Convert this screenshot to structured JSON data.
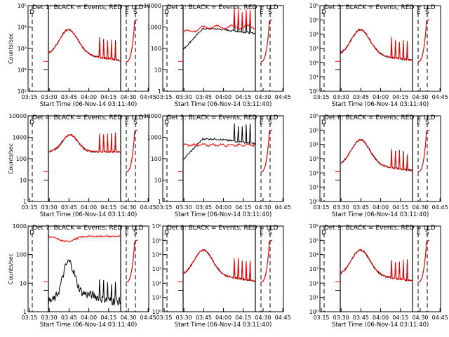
{
  "chart_data": [
    {
      "type": "line",
      "title": "Det 1: BLACK = Events, RED = LLD",
      "ylabel": "Counts/sec",
      "xlabel": "Start Time (06-Nov-14 03:11:40)",
      "y_tick_labels": [
        "10¹",
        "10²",
        "10³",
        "10⁴",
        "10⁵"
      ],
      "ylim": [
        1,
        100000
      ],
      "log_y": true,
      "x_tick_labels": [
        "03:15",
        "03:30",
        "03:45",
        "04:00",
        "04:15",
        "04:30",
        "04:45"
      ],
      "markers": [
        "D",
        "E",
        "S"
      ],
      "series": [
        {
          "name": "Events",
          "color": "#000000",
          "shape": "rise"
        },
        {
          "name": "LLD",
          "color": "#ff0000",
          "shape": "rise"
        }
      ]
    },
    {
      "type": "line",
      "title": "Det 2: BLACK = Events, RED = LLD",
      "ylabel": "",
      "xlabel": "Start Time (06-Nov-14 03:11:40)",
      "y_tick_labels": [
        "1",
        "10",
        "100",
        "1000",
        "10000"
      ],
      "ylim": [
        1,
        10000
      ],
      "log_y": true,
      "x_tick_labels": [
        "03:15",
        "03:30",
        "03:45",
        "04:00",
        "04:15",
        "04:30",
        "04:45"
      ],
      "markers": [
        "D",
        "E",
        "S"
      ],
      "series": [
        {
          "name": "Events",
          "color": "#000000",
          "shape": "plateau"
        },
        {
          "name": "LLD",
          "color": "#ff0000",
          "shape": "high"
        }
      ]
    },
    {
      "type": "line",
      "title": "Det 3: BLACK = Events, RED = LLD",
      "ylabel": "",
      "xlabel": "Start Time (06-Nov-14 03:11:40)",
      "y_tick_labels": [
        "10⁰",
        "10¹",
        "10²",
        "10³",
        "10⁴",
        "10⁵",
        "10⁶"
      ],
      "ylim": [
        1,
        1000000
      ],
      "log_y": true,
      "x_tick_labels": [
        "03:15",
        "03:30",
        "03:45",
        "04:00",
        "04:15",
        "04:30",
        "04:45"
      ],
      "markers": [
        "D",
        "E",
        "S"
      ],
      "series": [
        {
          "name": "Events",
          "color": "#000000",
          "shape": "rise"
        },
        {
          "name": "LLD",
          "color": "#ff0000",
          "shape": "rise"
        }
      ]
    },
    {
      "type": "line",
      "title": "Det 4: BLACK = Events, RED = LLD",
      "ylabel": "Counts/sec",
      "xlabel": "Start Time (06-Nov-14 03:11:40)",
      "y_tick_labels": [
        "1",
        "10",
        "100",
        "1000",
        "10000"
      ],
      "ylim": [
        1,
        10000
      ],
      "log_y": true,
      "x_tick_labels": [
        "03:15",
        "03:30",
        "03:45",
        "04:00",
        "04:15",
        "04:30",
        "04:45"
      ],
      "markers": [
        "D",
        "E",
        "S"
      ],
      "series": [
        {
          "name": "Events",
          "color": "#000000",
          "shape": "bump"
        },
        {
          "name": "LLD",
          "color": "#ff0000",
          "shape": "bump"
        }
      ]
    },
    {
      "type": "line",
      "title": "Det 5: BLACK = Events, RED = LLD",
      "ylabel": "",
      "xlabel": "Start Time (06-Nov-14 03:11:40)",
      "y_tick_labels": [
        "1",
        "10",
        "100",
        "1000",
        "10000"
      ],
      "ylim": [
        1,
        10000
      ],
      "log_y": true,
      "x_tick_labels": [
        "03:15",
        "03:30",
        "03:45",
        "04:00",
        "04:15",
        "04:30",
        "04:45"
      ],
      "markers": [
        "D",
        "E",
        "S"
      ],
      "series": [
        {
          "name": "Events",
          "color": "#000000",
          "shape": "plateau"
        },
        {
          "name": "LLD",
          "color": "#ff0000",
          "shape": "flat"
        }
      ]
    },
    {
      "type": "line",
      "title": "Det 6: BLACK = Events, RED = LLD",
      "ylabel": "",
      "xlabel": "Start Time (06-Nov-14 03:11:40)",
      "y_tick_labels": [
        "10⁰",
        "10¹",
        "10²",
        "10³",
        "10⁴",
        "10⁵",
        "10⁶"
      ],
      "ylim": [
        1,
        1000000
      ],
      "log_y": true,
      "x_tick_labels": [
        "03:15",
        "03:30",
        "03:45",
        "04:00",
        "04:15",
        "04:30",
        "04:45"
      ],
      "markers": [
        "D",
        "E",
        "S"
      ],
      "series": [
        {
          "name": "Events",
          "color": "#000000",
          "shape": "rise"
        },
        {
          "name": "LLD",
          "color": "#ff0000",
          "shape": "rise"
        }
      ]
    },
    {
      "type": "line",
      "title": "Det 7: BLACK = Events, RED = LLD",
      "ylabel": "Counts/sec",
      "xlabel": "Start Time (06-Nov-14 03:11:40)",
      "y_tick_labels": [
        "1",
        "10",
        "100",
        "1000"
      ],
      "ylim": [
        1,
        1000
      ],
      "log_y": true,
      "x_tick_labels": [
        "03:15",
        "03:30",
        "03:45",
        "04:00",
        "04:15",
        "04:30",
        "04:45"
      ],
      "markers": [
        "D",
        "E",
        "S"
      ],
      "series": [
        {
          "name": "Events",
          "color": "#000000",
          "shape": "noisy"
        },
        {
          "name": "LLD",
          "color": "#ff0000",
          "shape": "top"
        }
      ]
    },
    {
      "type": "line",
      "title": "Det 8: BLACK = Events, RED = LLD",
      "ylabel": "",
      "xlabel": "Start Time (06-Nov-14 03:11:40)",
      "y_tick_labels": [
        "10⁰",
        "10¹",
        "10²",
        "10³",
        "10⁴",
        "10⁵",
        "10⁶"
      ],
      "ylim": [
        1,
        1000000
      ],
      "log_y": true,
      "x_tick_labels": [
        "03:15",
        "03:30",
        "03:45",
        "04:00",
        "04:15",
        "04:30",
        "04:45"
      ],
      "markers": [
        "D",
        "E",
        "S"
      ],
      "series": [
        {
          "name": "Events",
          "color": "#000000",
          "shape": "rise"
        },
        {
          "name": "LLD",
          "color": "#ff0000",
          "shape": "rise"
        }
      ]
    },
    {
      "type": "line",
      "title": "Det 9: BLACK = Events, RED = LLD",
      "ylabel": "",
      "xlabel": "Start Time (06-Nov-14 03:11:40)",
      "y_tick_labels": [
        "10⁰",
        "10¹",
        "10²",
        "10³",
        "10⁴",
        "10⁵",
        "10⁶"
      ],
      "ylim": [
        1,
        1000000
      ],
      "log_y": true,
      "x_tick_labels": [
        "03:15",
        "03:30",
        "03:45",
        "04:00",
        "04:15",
        "04:30",
        "04:45"
      ],
      "markers": [
        "D",
        "E",
        "S"
      ],
      "series": [
        {
          "name": "Events",
          "color": "#000000",
          "shape": "rise"
        },
        {
          "name": "LLD",
          "color": "#ff0000",
          "shape": "rise"
        }
      ]
    }
  ]
}
